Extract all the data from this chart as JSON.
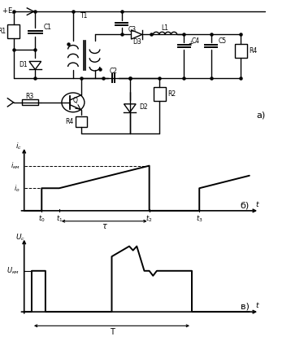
{
  "fig_width": 3.58,
  "fig_height": 4.19,
  "dpi": 100,
  "bg_color": "#ffffff",
  "line_color": "#000000",
  "label_a": "а)",
  "label_b": "б)",
  "label_v": "в)"
}
